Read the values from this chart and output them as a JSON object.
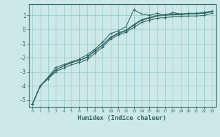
{
  "xlabel": "Humidex (Indice chaleur)",
  "bg_color": "#cce8e8",
  "grid_color": "#99cccc",
  "line_color": "#336666",
  "xlim": [
    -0.5,
    23.5
  ],
  "ylim": [
    -5.5,
    1.8
  ],
  "yticks": [
    1,
    0,
    -1,
    -2,
    -3,
    -4,
    -5
  ],
  "xticks": [
    0,
    1,
    2,
    3,
    4,
    5,
    6,
    7,
    8,
    9,
    10,
    11,
    12,
    13,
    14,
    15,
    16,
    17,
    18,
    19,
    20,
    21,
    22,
    23
  ],
  "series_x": [
    0,
    1,
    2,
    3,
    4,
    5,
    6,
    7,
    8,
    9,
    10,
    11,
    12,
    13,
    14,
    15,
    16,
    17,
    18,
    19,
    20,
    21,
    22,
    23
  ],
  "series": [
    [
      -5.3,
      -4.0,
      -3.4,
      -2.7,
      -2.5,
      -2.3,
      -2.1,
      -1.8,
      -1.4,
      -0.9,
      -0.3,
      -0.1,
      0.2,
      1.4,
      1.1,
      1.0,
      1.15,
      1.0,
      1.2,
      1.1,
      1.1,
      1.1,
      1.2,
      1.3
    ],
    [
      -5.3,
      -4.0,
      -3.4,
      -2.9,
      -2.6,
      -2.35,
      -2.2,
      -2.0,
      -1.55,
      -1.1,
      -0.55,
      -0.25,
      -0.05,
      0.35,
      0.7,
      0.85,
      1.0,
      1.05,
      1.1,
      1.1,
      1.15,
      1.15,
      1.2,
      1.3
    ],
    [
      -5.3,
      -4.0,
      -3.5,
      -2.85,
      -2.6,
      -2.35,
      -2.2,
      -1.95,
      -1.5,
      -1.1,
      -0.6,
      -0.3,
      -0.1,
      0.3,
      0.65,
      0.8,
      0.95,
      1.0,
      1.05,
      1.05,
      1.1,
      1.1,
      1.15,
      1.25
    ],
    [
      -5.3,
      -4.0,
      -3.5,
      -3.0,
      -2.75,
      -2.5,
      -2.35,
      -2.15,
      -1.7,
      -1.25,
      -0.7,
      -0.4,
      -0.2,
      0.15,
      0.5,
      0.65,
      0.8,
      0.85,
      0.9,
      0.9,
      0.95,
      0.95,
      1.0,
      1.15
    ]
  ]
}
